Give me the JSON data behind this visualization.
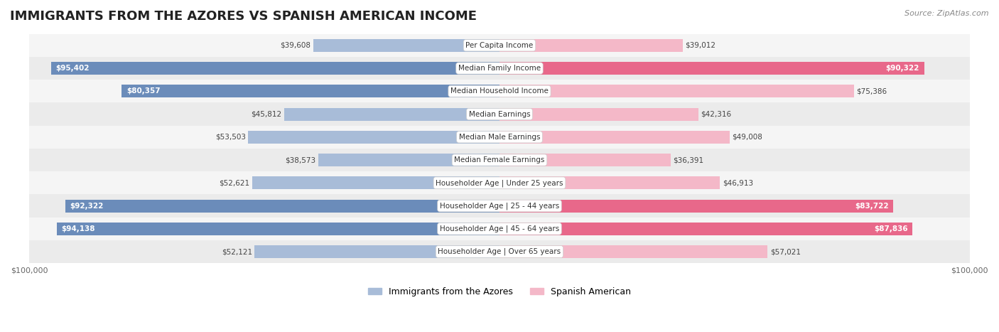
{
  "title": "IMMIGRANTS FROM THE AZORES VS SPANISH AMERICAN INCOME",
  "source": "Source: ZipAtlas.com",
  "categories": [
    "Per Capita Income",
    "Median Family Income",
    "Median Household Income",
    "Median Earnings",
    "Median Male Earnings",
    "Median Female Earnings",
    "Householder Age | Under 25 years",
    "Householder Age | 25 - 44 years",
    "Householder Age | 45 - 64 years",
    "Householder Age | Over 65 years"
  ],
  "azores_values": [
    39608,
    95402,
    80357,
    45812,
    53503,
    38573,
    52621,
    92322,
    94138,
    52121
  ],
  "spanish_values": [
    39012,
    90322,
    75386,
    42316,
    49008,
    36391,
    46913,
    83722,
    87836,
    57021
  ],
  "azores_labels": [
    "$39,608",
    "$95,402",
    "$80,357",
    "$45,812",
    "$53,503",
    "$38,573",
    "$52,621",
    "$92,322",
    "$94,138",
    "$52,121"
  ],
  "spanish_labels": [
    "$39,012",
    "$90,322",
    "$75,386",
    "$42,316",
    "$49,008",
    "$36,391",
    "$46,913",
    "$83,722",
    "$87,836",
    "$57,021"
  ],
  "azores_color_light": "#a8bcd8",
  "azores_color_dark": "#6b8cba",
  "spanish_color_light": "#f4b8c8",
  "spanish_color_dark": "#e8688a",
  "max_value": 100000,
  "background_color": "#f5f5f5",
  "row_bg_light": "#f0f0f0",
  "row_bg_dark": "#e8e8e8",
  "label_threshold": 80000,
  "legend_azores": "Immigrants from the Azores",
  "legend_spanish": "Spanish American"
}
